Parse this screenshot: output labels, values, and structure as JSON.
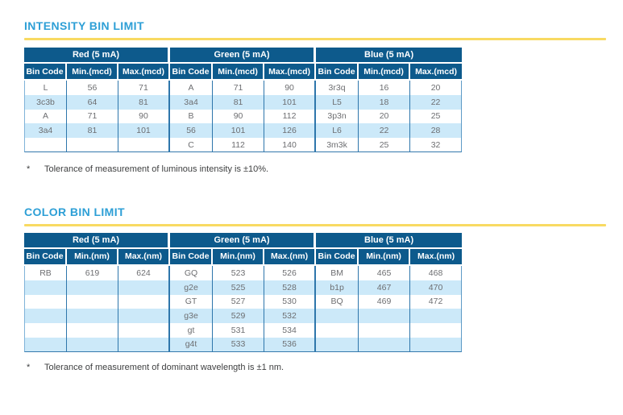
{
  "theme": {
    "title_color": "#2d9fd6",
    "rule_color": "#f8da62",
    "header_bg": "#0d5a8c",
    "header_text": "#ffffff",
    "alt_row_bg": "#cce9f9",
    "grid_line": "#2e76ab",
    "data_text": "#6d6e71"
  },
  "sections": [
    {
      "title": "INTENSITY BIN LIMIT",
      "footnote_marker": "*",
      "footnote": "Tolerance of measurement of luminous intensity is ±10%.",
      "table": {
        "groups": [
          "Red (5 mA)",
          "Green (5 mA)",
          "Blue (5 mA)"
        ],
        "columns": [
          "Bin Code",
          "Min.(mcd)",
          "Max.(mcd)"
        ],
        "rows": [
          [
            "L",
            "56",
            "71",
            "A",
            "71",
            "90",
            "3r3q",
            "16",
            "20"
          ],
          [
            "3c3b",
            "64",
            "81",
            "3a4",
            "81",
            "101",
            "L5",
            "18",
            "22"
          ],
          [
            "A",
            "71",
            "90",
            "B",
            "90",
            "112",
            "3p3n",
            "20",
            "25"
          ],
          [
            "3a4",
            "81",
            "101",
            "56",
            "101",
            "126",
            "L6",
            "22",
            "28"
          ],
          [
            "",
            "",
            "",
            "C",
            "112",
            "140",
            "3m3k",
            "25",
            "32"
          ]
        ]
      }
    },
    {
      "title": "COLOR BIN LIMIT",
      "footnote_marker": "*",
      "footnote": "Tolerance of measurement of dominant wavelength is ±1 nm.",
      "table": {
        "groups": [
          "Red (5 mA)",
          "Green (5 mA)",
          "Blue (5 mA)"
        ],
        "columns": [
          "Bin Code",
          "Min.(nm)",
          "Max.(nm)"
        ],
        "rows": [
          [
            "RB",
            "619",
            "624",
            "GQ",
            "523",
            "526",
            "BM",
            "465",
            "468"
          ],
          [
            "",
            "",
            "",
            "g2e",
            "525",
            "528",
            "b1p",
            "467",
            "470"
          ],
          [
            "",
            "",
            "",
            "GT",
            "527",
            "530",
            "BQ",
            "469",
            "472"
          ],
          [
            "",
            "",
            "",
            "g3e",
            "529",
            "532",
            "",
            "",
            ""
          ],
          [
            "",
            "",
            "",
            "gt",
            "531",
            "534",
            "",
            "",
            ""
          ],
          [
            "",
            "",
            "",
            "g4t",
            "533",
            "536",
            "",
            "",
            ""
          ]
        ]
      }
    }
  ]
}
